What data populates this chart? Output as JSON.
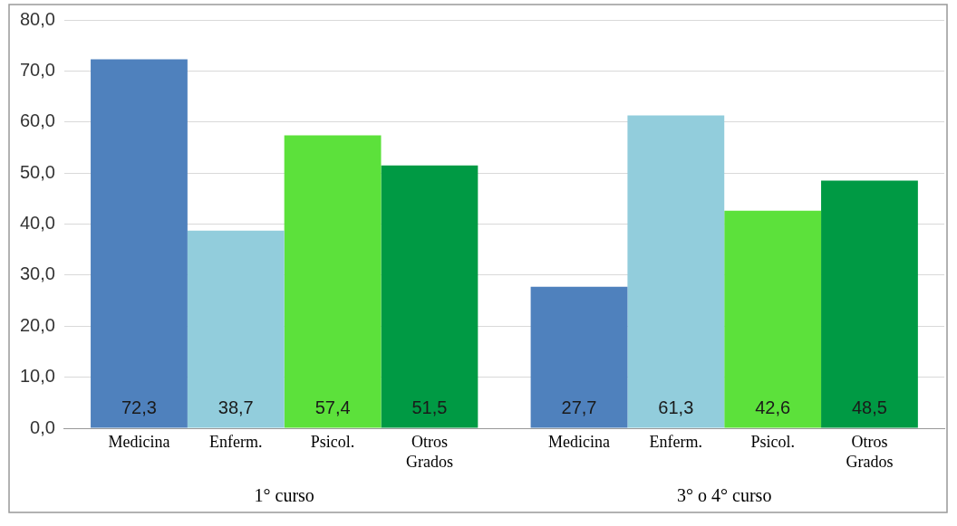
{
  "chart_data": {
    "type": "bar",
    "categories": [
      "1° curso",
      "3° o 4° curso"
    ],
    "series": [
      {
        "name": "Medicina",
        "color": "#4f81bd",
        "values": [
          72.3,
          27.7
        ],
        "value_labels": [
          "72,3",
          "27,7"
        ]
      },
      {
        "name": "Enferm.",
        "color": "#92cddc",
        "values": [
          38.7,
          61.3
        ],
        "value_labels": [
          "38,7",
          "61,3"
        ]
      },
      {
        "name": "Psicol.",
        "color": "#5ce13b",
        "values": [
          57.4,
          42.6
        ],
        "value_labels": [
          "57,4",
          "42,6"
        ]
      },
      {
        "name": "Otros Grados",
        "color": "#009a44",
        "values": [
          51.5,
          48.5
        ],
        "value_labels": [
          "51,5",
          "48,5"
        ]
      }
    ],
    "ylim": [
      0,
      80
    ],
    "yticks": [
      {
        "value": 0,
        "label": "0,0"
      },
      {
        "value": 10,
        "label": "10,0"
      },
      {
        "value": 20,
        "label": "20,0"
      },
      {
        "value": 30,
        "label": "30,0"
      },
      {
        "value": 40,
        "label": "40,0"
      },
      {
        "value": 50,
        "label": "50,0"
      },
      {
        "value": 60,
        "label": "60,0"
      },
      {
        "value": 70,
        "label": "70,0"
      },
      {
        "value": 80,
        "label": "80,0"
      }
    ],
    "grid": "y",
    "legend": false
  }
}
